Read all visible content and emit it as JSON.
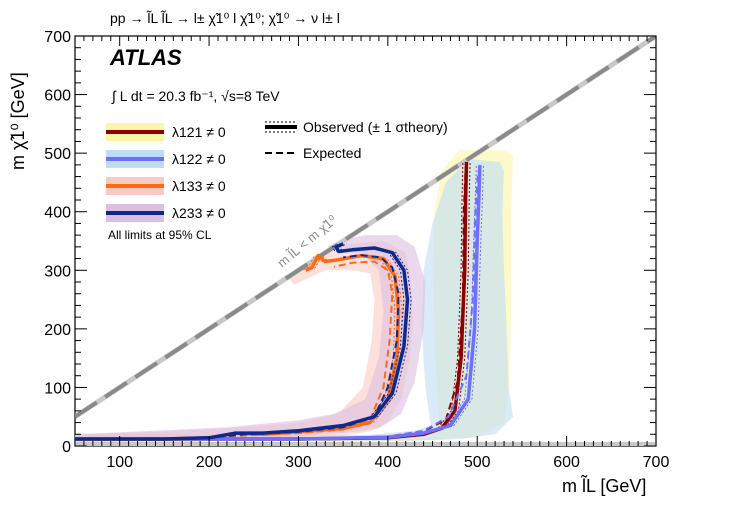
{
  "chart_data": {
    "type": "line",
    "title": "pp → l̃L l̃L → l± χ̃1⁰ l χ̃1⁰;   χ̃1⁰ → ν l± l",
    "xlabel": "m l̃L [GeV]",
    "ylabel": "m χ̃1⁰ [GeV]",
    "xlim": [
      50,
      700
    ],
    "ylim": [
      0,
      700
    ],
    "xticks": [
      "100",
      "200",
      "300",
      "400",
      "500",
      "600",
      "700"
    ],
    "yticks": [
      "0",
      "100",
      "200",
      "300",
      "400",
      "500",
      "600",
      "700"
    ],
    "experiment": "ATLAS",
    "luminosity": "∫ L dt = 20.3 fb⁻¹, √s=8 TeV",
    "note": "All limits at 95% CL",
    "diagonal_label": "m l̃L < m χ̃1⁰",
    "legend_style": {
      "observed": "Observed (± 1 σtheory)",
      "expected": "Expected"
    },
    "series": [
      {
        "name": "λ121 ≠ 0",
        "color": "#8b0000",
        "band_color": "#fbf5a8",
        "observed": [
          [
            50,
            12
          ],
          [
            200,
            12
          ],
          [
            300,
            12
          ],
          [
            400,
            14
          ],
          [
            440,
            20
          ],
          [
            460,
            30
          ],
          [
            475,
            60
          ],
          [
            482,
            150
          ],
          [
            486,
            300
          ],
          [
            487,
            420
          ],
          [
            488,
            485
          ]
        ],
        "expected": [
          [
            50,
            12
          ],
          [
            200,
            12
          ],
          [
            300,
            12
          ],
          [
            400,
            16
          ],
          [
            440,
            25
          ],
          [
            465,
            45
          ],
          [
            478,
            110
          ],
          [
            484,
            250
          ],
          [
            485,
            400
          ],
          [
            487,
            475
          ]
        ],
        "band": [
          [
            540,
            495
          ],
          [
            538,
            400
          ],
          [
            538,
            250
          ],
          [
            536,
            100
          ],
          [
            530,
            40
          ],
          [
            500,
            15
          ],
          [
            450,
            10
          ],
          [
            400,
            8
          ],
          [
            50,
            8
          ],
          [
            50,
            20
          ],
          [
            380,
            18
          ],
          [
            440,
            28
          ],
          [
            458,
            35
          ],
          [
            455,
            100
          ],
          [
            452,
            200
          ],
          [
            450,
            300
          ],
          [
            452,
            400
          ],
          [
            460,
            470
          ],
          [
            480,
            505
          ],
          [
            530,
            505
          ]
        ]
      },
      {
        "name": "λ122 ≠ 0",
        "color": "#6f6fff",
        "band_color": "#bfdcf5",
        "observed": [
          [
            50,
            12
          ],
          [
            200,
            12
          ],
          [
            300,
            12
          ],
          [
            400,
            15
          ],
          [
            440,
            22
          ],
          [
            470,
            35
          ],
          [
            490,
            80
          ],
          [
            497,
            200
          ],
          [
            500,
            350
          ],
          [
            502,
            430
          ],
          [
            503,
            480
          ]
        ],
        "expected": [
          [
            50,
            12
          ],
          [
            200,
            12
          ],
          [
            300,
            12
          ],
          [
            400,
            16
          ],
          [
            440,
            26
          ],
          [
            468,
            50
          ],
          [
            488,
            120
          ],
          [
            495,
            250
          ],
          [
            498,
            400
          ],
          [
            501,
            470
          ]
        ],
        "band": [
          [
            530,
            470
          ],
          [
            528,
            400
          ],
          [
            530,
            300
          ],
          [
            533,
            200
          ],
          [
            535,
            100
          ],
          [
            540,
            50
          ],
          [
            520,
            20
          ],
          [
            480,
            12
          ],
          [
            430,
            9
          ],
          [
            50,
            9
          ],
          [
            50,
            20
          ],
          [
            380,
            19
          ],
          [
            430,
            26
          ],
          [
            448,
            35
          ],
          [
            442,
            100
          ],
          [
            438,
            200
          ],
          [
            440,
            300
          ],
          [
            450,
            380
          ],
          [
            465,
            450
          ],
          [
            490,
            490
          ],
          [
            525,
            485
          ]
        ]
      },
      {
        "name": "λ133 ≠ 0",
        "color": "#ff6a13",
        "band_color": "#fbc9c4",
        "observed": [
          [
            50,
            12
          ],
          [
            150,
            12
          ],
          [
            200,
            14
          ],
          [
            230,
            22
          ],
          [
            260,
            20
          ],
          [
            300,
            24
          ],
          [
            350,
            30
          ],
          [
            380,
            40
          ],
          [
            400,
            80
          ],
          [
            410,
            150
          ],
          [
            412,
            230
          ],
          [
            408,
            290
          ],
          [
            395,
            320
          ],
          [
            370,
            325
          ],
          [
            345,
            318
          ],
          [
            330,
            315
          ],
          [
            322,
            325
          ],
          [
            315,
            305
          ],
          [
            308,
            300
          ]
        ],
        "expected": [
          [
            50,
            12
          ],
          [
            150,
            12
          ],
          [
            200,
            14
          ],
          [
            240,
            18
          ],
          [
            300,
            22
          ],
          [
            350,
            28
          ],
          [
            380,
            45
          ],
          [
            395,
            100
          ],
          [
            402,
            180
          ],
          [
            405,
            260
          ],
          [
            400,
            300
          ],
          [
            385,
            315
          ],
          [
            360,
            313
          ],
          [
            340,
            306
          ]
        ],
        "band": [
          [
            50,
            20
          ],
          [
            50,
            7
          ],
          [
            180,
            7
          ],
          [
            240,
            12
          ],
          [
            300,
            15
          ],
          [
            350,
            18
          ],
          [
            380,
            25
          ],
          [
            400,
            40
          ],
          [
            415,
            80
          ],
          [
            425,
            150
          ],
          [
            428,
            220
          ],
          [
            425,
            290
          ],
          [
            420,
            330
          ],
          [
            395,
            350
          ],
          [
            360,
            345
          ],
          [
            330,
            335
          ],
          [
            300,
            300
          ],
          [
            290,
            285
          ],
          [
            295,
            275
          ],
          [
            330,
            300
          ],
          [
            360,
            300
          ],
          [
            380,
            295
          ],
          [
            385,
            250
          ],
          [
            382,
            180
          ],
          [
            372,
            100
          ],
          [
            345,
            55
          ],
          [
            300,
            40
          ],
          [
            260,
            35
          ],
          [
            220,
            30
          ],
          [
            150,
            25
          ]
        ]
      },
      {
        "name": "λ233 ≠ 0",
        "color": "#0a2a90",
        "band_color": "#dcbfe0",
        "observed": [
          [
            50,
            12
          ],
          [
            150,
            12
          ],
          [
            200,
            14
          ],
          [
            230,
            22
          ],
          [
            260,
            22
          ],
          [
            300,
            26
          ],
          [
            350,
            35
          ],
          [
            385,
            50
          ],
          [
            405,
            90
          ],
          [
            418,
            170
          ],
          [
            422,
            250
          ],
          [
            418,
            300
          ],
          [
            405,
            330
          ],
          [
            385,
            338
          ],
          [
            360,
            335
          ],
          [
            345,
            332
          ],
          [
            342,
            340
          ],
          [
            350,
            345
          ]
        ],
        "expected": [
          [
            50,
            12
          ],
          [
            150,
            12
          ],
          [
            200,
            14
          ],
          [
            240,
            20
          ],
          [
            300,
            24
          ],
          [
            350,
            32
          ],
          [
            385,
            50
          ],
          [
            400,
            100
          ],
          [
            410,
            180
          ],
          [
            412,
            260
          ],
          [
            405,
            305
          ],
          [
            392,
            322
          ],
          [
            370,
            326
          ],
          [
            350,
            322
          ]
        ],
        "band": [
          [
            50,
            20
          ],
          [
            50,
            8
          ],
          [
            180,
            8
          ],
          [
            240,
            13
          ],
          [
            300,
            17
          ],
          [
            350,
            22
          ],
          [
            390,
            30
          ],
          [
            415,
            55
          ],
          [
            430,
            110
          ],
          [
            440,
            200
          ],
          [
            442,
            280
          ],
          [
            430,
            340
          ],
          [
            410,
            360
          ],
          [
            375,
            360
          ],
          [
            345,
            350
          ],
          [
            332,
            340
          ],
          [
            345,
            330
          ],
          [
            370,
            330
          ],
          [
            390,
            300
          ],
          [
            395,
            230
          ],
          [
            390,
            150
          ],
          [
            375,
            80
          ],
          [
            340,
            55
          ],
          [
            300,
            44
          ],
          [
            260,
            38
          ],
          [
            220,
            32
          ],
          [
            150,
            27
          ]
        ]
      }
    ]
  }
}
